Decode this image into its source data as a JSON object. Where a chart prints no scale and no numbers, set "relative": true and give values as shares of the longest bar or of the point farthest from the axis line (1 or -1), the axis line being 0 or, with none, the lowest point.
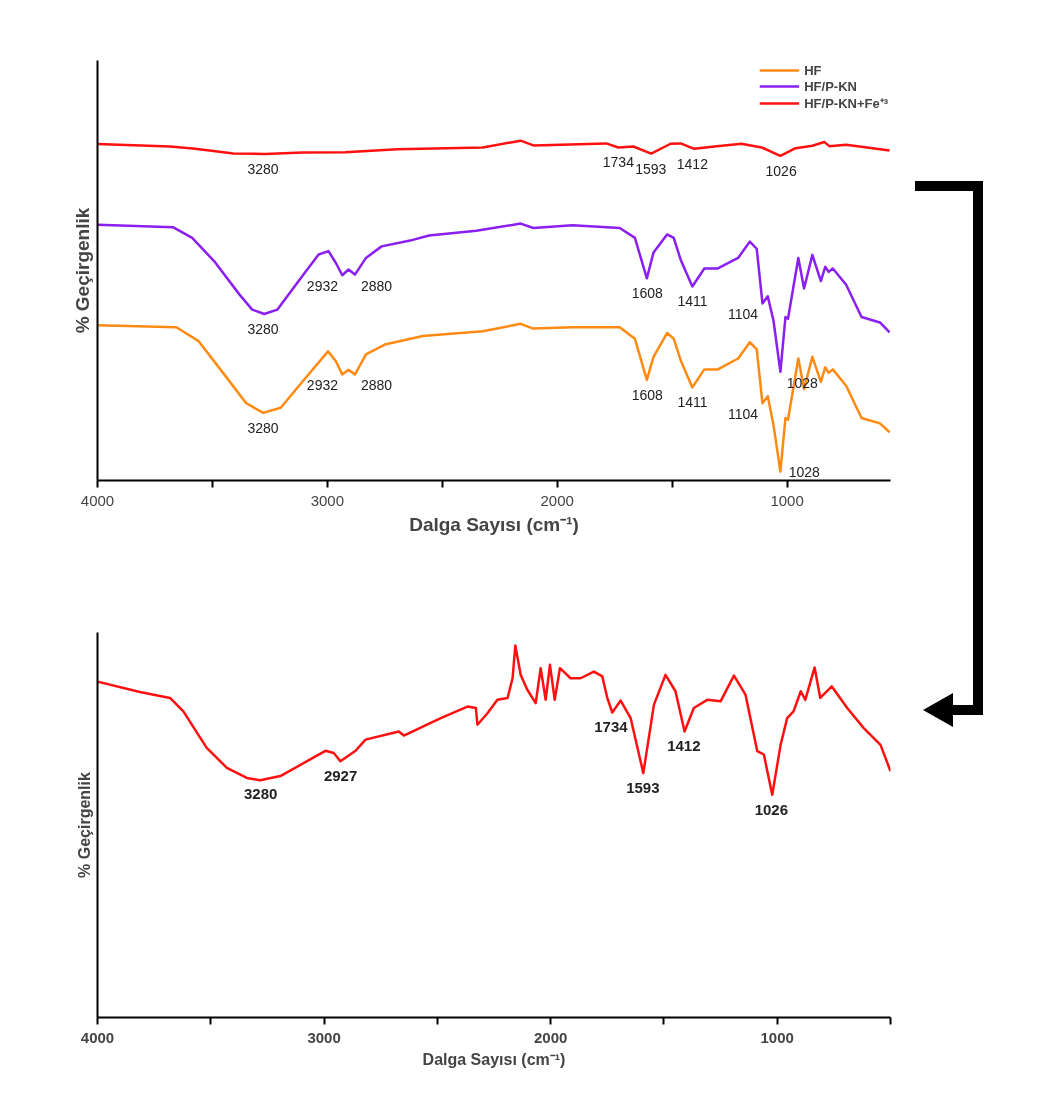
{
  "chart_data": [
    {
      "type": "line",
      "relative": true,
      "xlabel": "Dalga Sayısı (cm⁻¹)",
      "ylabel": "% Geçirgenlik",
      "legend": "top right",
      "xlim": [
        4000,
        550
      ],
      "xticks": [
        4000,
        {
          "value": 3500,
          "label": null
        },
        3000,
        {
          "value": 2500,
          "label": null
        },
        2000,
        {
          "value": 1500,
          "label": null
        },
        1000
      ],
      "series": [
        {
          "name": "HF",
          "color": "#ff8a12",
          "x": [
            4000,
            3657,
            3560,
            3437,
            3354,
            3279,
            3203,
            3107,
            2997,
            2963,
            2935,
            2908,
            2880,
            2832,
            2750,
            2585,
            2324,
            2159,
            2104,
            1934,
            1728,
            1662,
            1610,
            1581,
            1522,
            1493,
            1463,
            1412,
            1360,
            1301,
            1213,
            1162,
            1132,
            1107,
            1084,
            1059,
            1029,
            1007,
            996,
            951,
            926,
            890,
            853,
            834,
            819,
            801,
            743,
            676,
            596,
            554
          ],
          "values": [
            0.457,
            0.451,
            0.41,
            0.302,
            0.228,
            0.199,
            0.214,
            0.292,
            0.38,
            0.351,
            0.312,
            0.326,
            0.312,
            0.371,
            0.4,
            0.425,
            0.439,
            0.461,
            0.447,
            0.451,
            0.451,
            0.417,
            0.296,
            0.364,
            0.434,
            0.417,
            0.354,
            0.274,
            0.327,
            0.327,
            0.359,
            0.407,
            0.386,
            0.227,
            0.248,
            0.163,
            0.026,
            0.184,
            0.179,
            0.359,
            0.269,
            0.364,
            0.29,
            0.333,
            0.317,
            0.327,
            0.279,
            0.184,
            0.168,
            0.142
          ]
        },
        {
          "name": "HF/P-KN",
          "color": "#8a1ff0",
          "x": [
            4000,
            3670,
            3588,
            3492,
            3382,
            3327,
            3275,
            3217,
            3121,
            3038,
            2995,
            2963,
            2935,
            2908,
            2880,
            2832,
            2764,
            2640,
            2558,
            2352,
            2159,
            2104,
            1934,
            1728,
            1662,
            1610,
            1581,
            1522,
            1493,
            1463,
            1412,
            1360,
            1301,
            1213,
            1162,
            1132,
            1107,
            1084,
            1059,
            1029,
            1007,
            996,
            951,
            926,
            890,
            853,
            834,
            819,
            801,
            743,
            676,
            596,
            554
          ],
          "values": [
            0.753,
            0.745,
            0.714,
            0.645,
            0.547,
            0.503,
            0.49,
            0.503,
            0.591,
            0.665,
            0.675,
            0.64,
            0.604,
            0.621,
            0.606,
            0.655,
            0.689,
            0.706,
            0.721,
            0.735,
            0.756,
            0.743,
            0.751,
            0.743,
            0.714,
            0.595,
            0.671,
            0.724,
            0.714,
            0.65,
            0.571,
            0.624,
            0.624,
            0.655,
            0.703,
            0.682,
            0.521,
            0.542,
            0.47,
            0.32,
            0.481,
            0.476,
            0.655,
            0.565,
            0.664,
            0.587,
            0.629,
            0.614,
            0.624,
            0.576,
            0.481,
            0.465,
            0.436
          ]
        },
        {
          "name": "HF/P-KN+Fe⁺³",
          "color": "#ff1010",
          "x": [
            4000,
            3684,
            3574,
            3409,
            3272,
            3107,
            2922,
            2695,
            2324,
            2159,
            2104,
            1787,
            1734,
            1669,
            1591,
            1507,
            1463,
            1404,
            1316,
            1199,
            1110,
            1029,
            963,
            890,
            838,
            816,
            743,
            554
          ],
          "values": [
            0.99,
            0.983,
            0.976,
            0.962,
            0.961,
            0.965,
            0.966,
            0.975,
            0.98,
            1.0,
            0.986,
            0.992,
            0.98,
            0.983,
            0.962,
            0.991,
            0.992,
            0.976,
            0.983,
            0.991,
            0.98,
            0.955,
            0.978,
            0.985,
            0.996,
            0.984,
            0.988,
            0.971
          ]
        }
      ],
      "annotations": [
        {
          "text": "3280",
          "x": 3280,
          "y": 0.961
        },
        {
          "text": "1734",
          "x": 1734,
          "y": 0.98
        },
        {
          "text": "1593",
          "x": 1593,
          "y": 0.962
        },
        {
          "text": "1412",
          "x": 1412,
          "y": 0.976
        },
        {
          "text": "1026",
          "x": 1026,
          "y": 0.955
        },
        {
          "text": "3280",
          "x": 3280,
          "y": 0.49
        },
        {
          "text": "2932",
          "x": 2932,
          "y": 0.604
        },
        {
          "text": "2880",
          "x": 2880,
          "y": 0.606
        },
        {
          "text": "1608",
          "x": 1608,
          "y": 0.595
        },
        {
          "text": "1411",
          "x": 1411,
          "y": 0.571
        },
        {
          "text": "1104",
          "x": 1104,
          "y": 0.521
        },
        {
          "text": "1028",
          "x": 1028,
          "y": 0.32
        },
        {
          "text": "3280",
          "x": 3280,
          "y": 0.199
        },
        {
          "text": "2932",
          "x": 2932,
          "y": 0.312
        },
        {
          "text": "2880",
          "x": 2880,
          "y": 0.312
        },
        {
          "text": "1608",
          "x": 1608,
          "y": 0.296
        },
        {
          "text": "1411",
          "x": 1411,
          "y": 0.274
        },
        {
          "text": "1104",
          "x": 1104,
          "y": 0.227
        },
        {
          "text": "1028",
          "x": 1028,
          "y": 0.026
        }
      ]
    },
    {
      "type": "line",
      "relative": true,
      "xlabel": "Dalga Sayısı (cm⁻¹)",
      "ylabel": "% Geçirgenlik",
      "xlim": [
        4000,
        500
      ],
      "xticks": [
        4000,
        {
          "value": 3500,
          "label": null
        },
        3000,
        {
          "value": 2500,
          "label": null
        },
        2000,
        {
          "value": 1500,
          "label": null
        },
        1000,
        {
          "value": 500,
          "label": null
        }
      ],
      "series": [
        {
          "color": "#ff1010",
          "x": [
            4000,
            3813,
            3680,
            3621,
            3518,
            3429,
            3341,
            3282,
            3193,
            3075,
            2994,
            2957,
            2928,
            2861,
            2817,
            2670,
            2648,
            2485,
            2367,
            2330,
            2323,
            2279,
            2235,
            2190,
            2168,
            2156,
            2132,
            2103,
            2066,
            2044,
            2022,
            2003,
            1982,
            1959,
            1912,
            1868,
            1809,
            1772,
            1750,
            1728,
            1691,
            1647,
            1591,
            1544,
            1493,
            1449,
            1409,
            1368,
            1309,
            1250,
            1191,
            1140,
            1088,
            1059,
            1022,
            985,
            956,
            928,
            896,
            876,
            835,
            810,
            759,
            691,
            618,
            544,
            500
          ],
          "values": [
            0.903,
            0.875,
            0.859,
            0.823,
            0.725,
            0.671,
            0.644,
            0.638,
            0.649,
            0.689,
            0.717,
            0.711,
            0.689,
            0.717,
            0.747,
            0.769,
            0.758,
            0.805,
            0.836,
            0.832,
            0.787,
            0.818,
            0.854,
            0.859,
            0.912,
            1.0,
            0.921,
            0.881,
            0.845,
            0.939,
            0.854,
            0.948,
            0.854,
            0.939,
            0.912,
            0.912,
            0.93,
            0.917,
            0.859,
            0.82,
            0.852,
            0.805,
            0.657,
            0.841,
            0.921,
            0.877,
            0.769,
            0.832,
            0.854,
            0.85,
            0.919,
            0.868,
            0.716,
            0.707,
            0.599,
            0.733,
            0.805,
            0.823,
            0.877,
            0.854,
            0.941,
            0.859,
            0.89,
            0.832,
            0.778,
            0.733,
            0.662
          ]
        }
      ],
      "annotations": [
        {
          "text": "3280",
          "x": 3280,
          "y": 0.642
        },
        {
          "text": "2927",
          "x": 2927,
          "y": 0.689
        },
        {
          "text": "1734",
          "x": 1734,
          "y": 0.82
        },
        {
          "text": "1593",
          "x": 1593,
          "y": 0.657
        },
        {
          "text": "1412",
          "x": 1412,
          "y": 0.769
        },
        {
          "text": "1026",
          "x": 1026,
          "y": 0.599
        }
      ]
    }
  ]
}
